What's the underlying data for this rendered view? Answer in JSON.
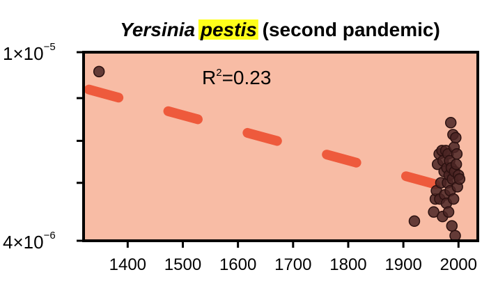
{
  "chart_data": {
    "type": "scatter",
    "title_parts": {
      "genus": "Yersinia",
      "species": "pestis",
      "suffix": "(second pandemic)"
    },
    "title_highlight_color": "#ffff1a",
    "annotation": {
      "r2_label": "R",
      "r2_sup": "2",
      "r2_value": "=0.23"
    },
    "y_scale": "log",
    "ylim": [
      4e-06,
      1e-05
    ],
    "xlim": [
      1320,
      2035
    ],
    "x_ticks": [
      {
        "value": 1400,
        "label": "1400"
      },
      {
        "value": 1500,
        "label": "1500"
      },
      {
        "value": 1600,
        "label": "1600"
      },
      {
        "value": 1700,
        "label": "1700"
      },
      {
        "value": 1800,
        "label": "1800"
      },
      {
        "value": 1900,
        "label": "1900"
      },
      {
        "value": 2000,
        "label": "2000"
      }
    ],
    "y_ticks": [
      {
        "value": 1e-05,
        "mantissa": "1",
        "times": "×",
        "base": "10",
        "exp": "−5"
      },
      {
        "value": 8e-06
      },
      {
        "value": 6.5e-06
      },
      {
        "value": 5.3e-06
      },
      {
        "value": 4e-06,
        "mantissa": "4",
        "times": "×",
        "base": "10",
        "exp": "−6"
      }
    ],
    "fit_line": {
      "color": "#ee5a3c",
      "start": {
        "x": 1320,
        "y": 8.4e-06
      },
      "end": {
        "x": 1975,
        "y": 5.2e-06
      },
      "style": "dashed"
    },
    "colors": {
      "panel_bg": "#f8bca5",
      "point_fill": "#4a2423",
      "point_edge": "#2b1110"
    },
    "points": [
      {
        "x": 1348,
        "y": 9.1e-06
      },
      {
        "x": 1920,
        "y": 4.4e-06
      },
      {
        "x": 1955,
        "y": 4.6e-06
      },
      {
        "x": 1958,
        "y": 4.9e-06
      },
      {
        "x": 1960,
        "y": 5.1e-06
      },
      {
        "x": 1962,
        "y": 5.8e-06
      },
      {
        "x": 1965,
        "y": 6.1e-06
      },
      {
        "x": 1966,
        "y": 4.9e-06
      },
      {
        "x": 1968,
        "y": 5.3e-06
      },
      {
        "x": 1970,
        "y": 6.2e-06
      },
      {
        "x": 1971,
        "y": 4.5e-06
      },
      {
        "x": 1972,
        "y": 5.9e-06
      },
      {
        "x": 1974,
        "y": 5.6e-06
      },
      {
        "x": 1975,
        "y": 5e-06
      },
      {
        "x": 1977,
        "y": 6.2e-06
      },
      {
        "x": 1978,
        "y": 4.8e-06
      },
      {
        "x": 1979,
        "y": 5.7e-06
      },
      {
        "x": 1980,
        "y": 5.3e-06
      },
      {
        "x": 1981,
        "y": 6.1e-06
      },
      {
        "x": 1982,
        "y": 4.6e-06
      },
      {
        "x": 1983,
        "y": 5.5e-06
      },
      {
        "x": 1984,
        "y": 5.9e-06
      },
      {
        "x": 1985,
        "y": 5.1e-06
      },
      {
        "x": 1986,
        "y": 7.1e-06
      },
      {
        "x": 1987,
        "y": 5.7e-06
      },
      {
        "x": 1988,
        "y": 4.3e-06
      },
      {
        "x": 1989,
        "y": 5.4e-06
      },
      {
        "x": 1990,
        "y": 6.7e-06
      },
      {
        "x": 1991,
        "y": 4.9e-06
      },
      {
        "x": 1992,
        "y": 6.3e-06
      },
      {
        "x": 1993,
        "y": 5.6e-06
      },
      {
        "x": 1994,
        "y": 4.1e-06
      },
      {
        "x": 1995,
        "y": 6.6e-06
      },
      {
        "x": 1996,
        "y": 5.8e-06
      },
      {
        "x": 1997,
        "y": 6.1e-06
      },
      {
        "x": 1998,
        "y": 5.2e-06
      },
      {
        "x": 2000,
        "y": 5.5e-06
      },
      {
        "x": 2002,
        "y": 5.4e-06
      }
    ]
  }
}
